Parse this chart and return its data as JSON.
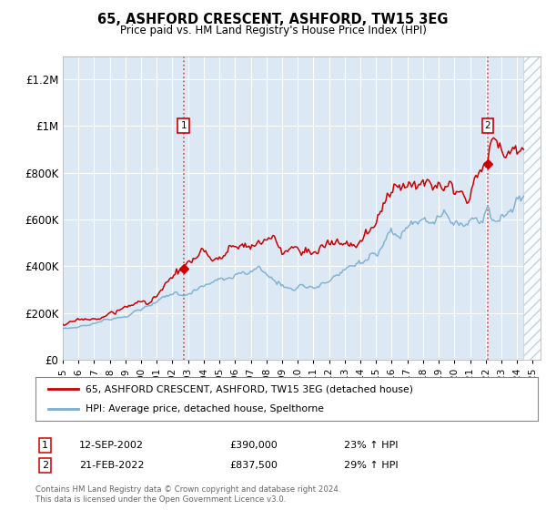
{
  "title": "65, ASHFORD CRESCENT, ASHFORD, TW15 3EG",
  "subtitle": "Price paid vs. HM Land Registry's House Price Index (HPI)",
  "legend_line1": "65, ASHFORD CRESCENT, ASHFORD, TW15 3EG (detached house)",
  "legend_line2": "HPI: Average price, detached house, Spelthorne",
  "transaction1_date": "12-SEP-2002",
  "transaction1_price": "£390,000",
  "transaction1_hpi": "23% ↑ HPI",
  "transaction2_date": "21-FEB-2022",
  "transaction2_price": "£837,500",
  "transaction2_hpi": "29% ↑ HPI",
  "footnote1": "Contains HM Land Registry data © Crown copyright and database right 2024.",
  "footnote2": "This data is licensed under the Open Government Licence v3.0.",
  "background_color": "#dce9f5",
  "red_line_color": "#cc0000",
  "blue_line_color": "#7aadcf",
  "ylim": [
    0,
    1300000
  ],
  "yticks": [
    0,
    200000,
    400000,
    600000,
    800000,
    1000000,
    1200000
  ],
  "xlim_start": 1995.0,
  "xlim_end": 2025.5,
  "hatch_start": 2024.42,
  "t1_x": 2002.71,
  "t1_y": 390000,
  "t2_x": 2022.12,
  "t2_y": 837500
}
